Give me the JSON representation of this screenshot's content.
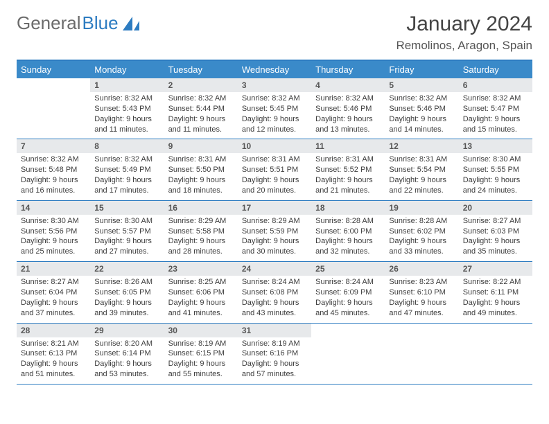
{
  "brand": {
    "part1": "General",
    "part2": "Blue"
  },
  "title": "January 2024",
  "location": "Remolinos, Aragon, Spain",
  "colors": {
    "headerBar": "#3a8ac9",
    "ruleLine": "#2d7cc1",
    "dayNumBg": "#e7e9eb",
    "textDark": "#3d3d3d",
    "logoGray": "#6b6b6b",
    "logoBlue": "#2d7cc1"
  },
  "dayNames": [
    "Sunday",
    "Monday",
    "Tuesday",
    "Wednesday",
    "Thursday",
    "Friday",
    "Saturday"
  ],
  "weeks": [
    [
      {
        "n": "",
        "sr": "",
        "ss": "",
        "dl1": "",
        "dl2": ""
      },
      {
        "n": "1",
        "sr": "Sunrise: 8:32 AM",
        "ss": "Sunset: 5:43 PM",
        "dl1": "Daylight: 9 hours",
        "dl2": "and 11 minutes."
      },
      {
        "n": "2",
        "sr": "Sunrise: 8:32 AM",
        "ss": "Sunset: 5:44 PM",
        "dl1": "Daylight: 9 hours",
        "dl2": "and 11 minutes."
      },
      {
        "n": "3",
        "sr": "Sunrise: 8:32 AM",
        "ss": "Sunset: 5:45 PM",
        "dl1": "Daylight: 9 hours",
        "dl2": "and 12 minutes."
      },
      {
        "n": "4",
        "sr": "Sunrise: 8:32 AM",
        "ss": "Sunset: 5:46 PM",
        "dl1": "Daylight: 9 hours",
        "dl2": "and 13 minutes."
      },
      {
        "n": "5",
        "sr": "Sunrise: 8:32 AM",
        "ss": "Sunset: 5:46 PM",
        "dl1": "Daylight: 9 hours",
        "dl2": "and 14 minutes."
      },
      {
        "n": "6",
        "sr": "Sunrise: 8:32 AM",
        "ss": "Sunset: 5:47 PM",
        "dl1": "Daylight: 9 hours",
        "dl2": "and 15 minutes."
      }
    ],
    [
      {
        "n": "7",
        "sr": "Sunrise: 8:32 AM",
        "ss": "Sunset: 5:48 PM",
        "dl1": "Daylight: 9 hours",
        "dl2": "and 16 minutes."
      },
      {
        "n": "8",
        "sr": "Sunrise: 8:32 AM",
        "ss": "Sunset: 5:49 PM",
        "dl1": "Daylight: 9 hours",
        "dl2": "and 17 minutes."
      },
      {
        "n": "9",
        "sr": "Sunrise: 8:31 AM",
        "ss": "Sunset: 5:50 PM",
        "dl1": "Daylight: 9 hours",
        "dl2": "and 18 minutes."
      },
      {
        "n": "10",
        "sr": "Sunrise: 8:31 AM",
        "ss": "Sunset: 5:51 PM",
        "dl1": "Daylight: 9 hours",
        "dl2": "and 20 minutes."
      },
      {
        "n": "11",
        "sr": "Sunrise: 8:31 AM",
        "ss": "Sunset: 5:52 PM",
        "dl1": "Daylight: 9 hours",
        "dl2": "and 21 minutes."
      },
      {
        "n": "12",
        "sr": "Sunrise: 8:31 AM",
        "ss": "Sunset: 5:54 PM",
        "dl1": "Daylight: 9 hours",
        "dl2": "and 22 minutes."
      },
      {
        "n": "13",
        "sr": "Sunrise: 8:30 AM",
        "ss": "Sunset: 5:55 PM",
        "dl1": "Daylight: 9 hours",
        "dl2": "and 24 minutes."
      }
    ],
    [
      {
        "n": "14",
        "sr": "Sunrise: 8:30 AM",
        "ss": "Sunset: 5:56 PM",
        "dl1": "Daylight: 9 hours",
        "dl2": "and 25 minutes."
      },
      {
        "n": "15",
        "sr": "Sunrise: 8:30 AM",
        "ss": "Sunset: 5:57 PM",
        "dl1": "Daylight: 9 hours",
        "dl2": "and 27 minutes."
      },
      {
        "n": "16",
        "sr": "Sunrise: 8:29 AM",
        "ss": "Sunset: 5:58 PM",
        "dl1": "Daylight: 9 hours",
        "dl2": "and 28 minutes."
      },
      {
        "n": "17",
        "sr": "Sunrise: 8:29 AM",
        "ss": "Sunset: 5:59 PM",
        "dl1": "Daylight: 9 hours",
        "dl2": "and 30 minutes."
      },
      {
        "n": "18",
        "sr": "Sunrise: 8:28 AM",
        "ss": "Sunset: 6:00 PM",
        "dl1": "Daylight: 9 hours",
        "dl2": "and 32 minutes."
      },
      {
        "n": "19",
        "sr": "Sunrise: 8:28 AM",
        "ss": "Sunset: 6:02 PM",
        "dl1": "Daylight: 9 hours",
        "dl2": "and 33 minutes."
      },
      {
        "n": "20",
        "sr": "Sunrise: 8:27 AM",
        "ss": "Sunset: 6:03 PM",
        "dl1": "Daylight: 9 hours",
        "dl2": "and 35 minutes."
      }
    ],
    [
      {
        "n": "21",
        "sr": "Sunrise: 8:27 AM",
        "ss": "Sunset: 6:04 PM",
        "dl1": "Daylight: 9 hours",
        "dl2": "and 37 minutes."
      },
      {
        "n": "22",
        "sr": "Sunrise: 8:26 AM",
        "ss": "Sunset: 6:05 PM",
        "dl1": "Daylight: 9 hours",
        "dl2": "and 39 minutes."
      },
      {
        "n": "23",
        "sr": "Sunrise: 8:25 AM",
        "ss": "Sunset: 6:06 PM",
        "dl1": "Daylight: 9 hours",
        "dl2": "and 41 minutes."
      },
      {
        "n": "24",
        "sr": "Sunrise: 8:24 AM",
        "ss": "Sunset: 6:08 PM",
        "dl1": "Daylight: 9 hours",
        "dl2": "and 43 minutes."
      },
      {
        "n": "25",
        "sr": "Sunrise: 8:24 AM",
        "ss": "Sunset: 6:09 PM",
        "dl1": "Daylight: 9 hours",
        "dl2": "and 45 minutes."
      },
      {
        "n": "26",
        "sr": "Sunrise: 8:23 AM",
        "ss": "Sunset: 6:10 PM",
        "dl1": "Daylight: 9 hours",
        "dl2": "and 47 minutes."
      },
      {
        "n": "27",
        "sr": "Sunrise: 8:22 AM",
        "ss": "Sunset: 6:11 PM",
        "dl1": "Daylight: 9 hours",
        "dl2": "and 49 minutes."
      }
    ],
    [
      {
        "n": "28",
        "sr": "Sunrise: 8:21 AM",
        "ss": "Sunset: 6:13 PM",
        "dl1": "Daylight: 9 hours",
        "dl2": "and 51 minutes."
      },
      {
        "n": "29",
        "sr": "Sunrise: 8:20 AM",
        "ss": "Sunset: 6:14 PM",
        "dl1": "Daylight: 9 hours",
        "dl2": "and 53 minutes."
      },
      {
        "n": "30",
        "sr": "Sunrise: 8:19 AM",
        "ss": "Sunset: 6:15 PM",
        "dl1": "Daylight: 9 hours",
        "dl2": "and 55 minutes."
      },
      {
        "n": "31",
        "sr": "Sunrise: 8:19 AM",
        "ss": "Sunset: 6:16 PM",
        "dl1": "Daylight: 9 hours",
        "dl2": "and 57 minutes."
      },
      {
        "n": "",
        "sr": "",
        "ss": "",
        "dl1": "",
        "dl2": ""
      },
      {
        "n": "",
        "sr": "",
        "ss": "",
        "dl1": "",
        "dl2": ""
      },
      {
        "n": "",
        "sr": "",
        "ss": "",
        "dl1": "",
        "dl2": ""
      }
    ]
  ]
}
